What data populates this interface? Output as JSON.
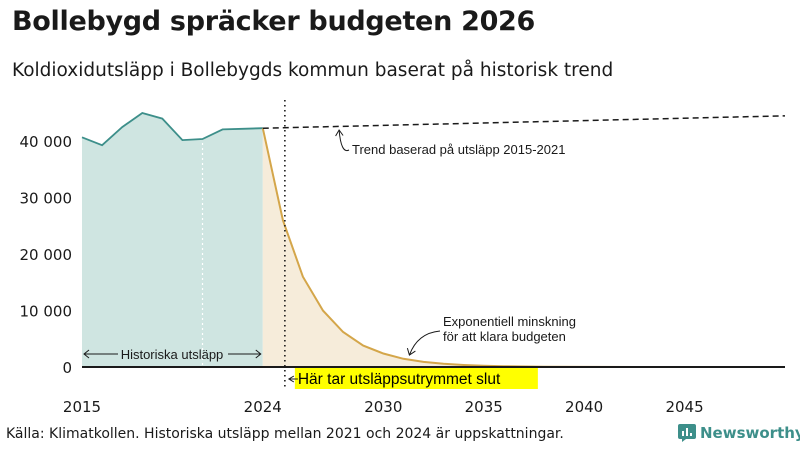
{
  "title": "Bollebygd spräcker budgeten 2026",
  "subtitle": "Koldioxidutsläpp i Bollebygds kommun baserat på historisk trend",
  "source": "Källa: Klimatkollen. Historiska utsläpp mellan 2021 och 2024 är uppskattningar.",
  "logo_text": "Newsworthy",
  "colors": {
    "historical_fill": "#cfe5e1",
    "historical_line": "#3d8f8a",
    "budget_fill": "#f6ecda",
    "budget_line": "#d4a64a",
    "highlight": "#ffff00",
    "axis": "#1a1a1a",
    "grid": "#d9d9d9",
    "brand": "#3d8f8a"
  },
  "chart_data": {
    "type": "area",
    "xlim": [
      2015,
      2050
    ],
    "ylim": [
      0,
      45000
    ],
    "y_ticks": [
      0,
      10000,
      20000,
      30000,
      40000
    ],
    "y_tick_labels": [
      "0",
      "10 000",
      "20 000",
      "30 000",
      "40 000"
    ],
    "x_ticks": [
      2015,
      2024,
      2030,
      2035,
      2040,
      2045
    ],
    "x_tick_labels": [
      "2015",
      "2024",
      "2030",
      "2035",
      "2040",
      "2045"
    ],
    "grid": false,
    "historical": {
      "x": [
        2015,
        2016,
        2017,
        2018,
        2019,
        2020,
        2021,
        2022,
        2023,
        2024
      ],
      "y": [
        40700,
        39300,
        42500,
        45000,
        44000,
        40200,
        40400,
        42100,
        42200,
        42300
      ]
    },
    "historical_estimate_from": 2021,
    "trend": {
      "x": [
        2024,
        2050
      ],
      "y": [
        42300,
        44500
      ]
    },
    "budget_path": {
      "x": [
        2024,
        2025,
        2026,
        2027,
        2028,
        2029,
        2030,
        2031,
        2032,
        2033,
        2034,
        2035,
        2036,
        2038,
        2040,
        2045,
        2050
      ],
      "y": [
        42300,
        26000,
        16000,
        10000,
        6200,
        3800,
        2400,
        1450,
        900,
        560,
        350,
        220,
        140,
        60,
        25,
        5,
        0
      ]
    },
    "budget_exceeded_year": 2025.1,
    "annotations": {
      "trend": "Trend baserad på utsläpp 2015-2021",
      "decline_line1": "Exponentiell minskning",
      "decline_line2": "för att klara budgeten",
      "historical": "Historiska utsläpp",
      "budget_exceeded": "Här tar utsläppsutrymmet slut"
    }
  }
}
